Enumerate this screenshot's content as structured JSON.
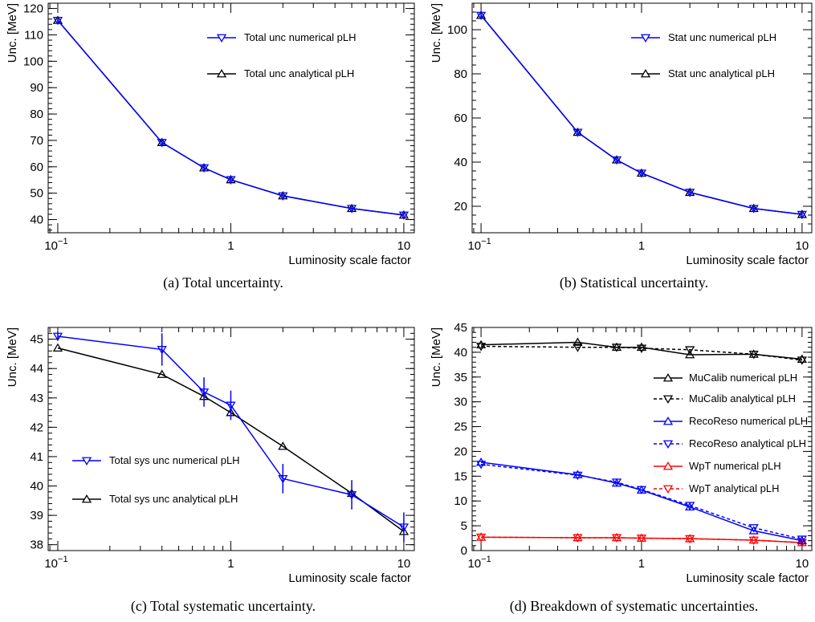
{
  "chart_data": [
    {
      "type": "line",
      "caption": "(a) Total uncertainty.",
      "xlabel": "Luminosity scale factor",
      "ylabel": "Unc. [MeV]",
      "x_scale": "log",
      "xlim": [
        0.088,
        11.5
      ],
      "ylim": [
        35,
        122
      ],
      "yticks": [
        40,
        50,
        60,
        70,
        80,
        90,
        100,
        110,
        120
      ],
      "x": [
        0.1,
        0.4,
        0.7,
        1,
        2,
        5,
        10
      ],
      "series": [
        {
          "name": "Total unc numerical pLH",
          "color": "#0000ff",
          "marker": "triangle-down",
          "values": [
            115.5,
            69.2,
            59.6,
            55.1,
            49.0,
            44.2,
            41.7
          ],
          "errors": [
            0.9,
            0.9,
            0.9,
            0.9,
            0.9,
            0.9,
            0.9
          ]
        },
        {
          "name": "Total unc analytical pLH",
          "color": "#000000",
          "marker": "triangle-up",
          "values": [
            115.5,
            69.2,
            59.6,
            55.1,
            49.0,
            44.2,
            41.7
          ]
        }
      ],
      "legend_position": "top-right",
      "grid": false
    },
    {
      "type": "line",
      "caption": "(b) Statistical uncertainty.",
      "xlabel": "Luminosity scale factor",
      "ylabel": "Unc. [MeV]",
      "x_scale": "log",
      "xlim": [
        0.088,
        11.5
      ],
      "ylim": [
        8,
        112
      ],
      "yticks": [
        20,
        40,
        60,
        80,
        100
      ],
      "x": [
        0.1,
        0.4,
        0.7,
        1,
        2,
        5,
        10
      ],
      "series": [
        {
          "name": "Stat unc numerical pLH",
          "color": "#0000ff",
          "marker": "triangle-down",
          "values": [
            106.5,
            53.5,
            41.0,
            35.0,
            26.3,
            19.0,
            16.3
          ],
          "errors": [
            1.1,
            1.1,
            1.1,
            1.1,
            1.1,
            1.1,
            1.1
          ]
        },
        {
          "name": "Stat unc analytical pLH",
          "color": "#000000",
          "marker": "triangle-up",
          "values": [
            106.5,
            53.5,
            41.0,
            35.0,
            26.3,
            19.0,
            16.3
          ]
        }
      ],
      "legend_position": "top-right",
      "grid": false
    },
    {
      "type": "line",
      "caption": "(c) Total systematic uncertainty.",
      "xlabel": "Luminosity scale factor",
      "ylabel": "Unc. [MeV]",
      "x_scale": "log",
      "xlim": [
        0.088,
        11.5
      ],
      "ylim": [
        37.8,
        45.4
      ],
      "yticks": [
        38,
        39,
        40,
        41,
        42,
        43,
        44,
        45
      ],
      "x": [
        0.1,
        0.4,
        0.7,
        1,
        2,
        5,
        10
      ],
      "series": [
        {
          "name": "Total sys unc numerical pLH",
          "color": "#0000ff",
          "marker": "triangle-down",
          "values": [
            45.1,
            44.65,
            43.2,
            42.75,
            40.25,
            39.7,
            38.6
          ],
          "errors": [
            0.15,
            0.55,
            0.5,
            0.5,
            0.5,
            0.5,
            0.5
          ]
        },
        {
          "name": "Total sys unc analytical pLH",
          "color": "#000000",
          "marker": "triangle-up",
          "values": [
            44.7,
            43.8,
            43.05,
            42.5,
            41.35,
            39.75,
            38.45
          ]
        }
      ],
      "legend_position": "bottom-left",
      "grid": false
    },
    {
      "type": "line",
      "caption": "(d) Breakdown of systematic uncertainties.",
      "xlabel": "Luminosity scale factor",
      "ylabel": "Unc. [MeV]",
      "x_scale": "log",
      "xlim": [
        0.088,
        11.5
      ],
      "ylim": [
        0,
        45
      ],
      "yticks": [
        0,
        5,
        10,
        15,
        20,
        25,
        30,
        35,
        40,
        45
      ],
      "x": [
        0.1,
        0.4,
        0.7,
        1,
        2,
        5,
        10
      ],
      "series": [
        {
          "name": "MuCalib numerical pLH",
          "color": "#000000",
          "marker": "triangle-up",
          "dashed": false,
          "values": [
            41.5,
            42.0,
            41.0,
            41.0,
            39.5,
            39.6,
            38.6
          ]
        },
        {
          "name": "MuCalib analytical pLH",
          "color": "#000000",
          "marker": "triangle-down",
          "dashed": true,
          "values": [
            41.2,
            41.0,
            41.0,
            40.8,
            40.5,
            39.6,
            38.4
          ]
        },
        {
          "name": "RecoReso numerical pLH",
          "color": "#0000ff",
          "marker": "triangle-up",
          "dashed": false,
          "values": [
            17.8,
            15.3,
            13.6,
            12.2,
            8.8,
            4.0,
            2.0
          ]
        },
        {
          "name": "RecoReso analytical pLH",
          "color": "#0000ff",
          "marker": "triangle-down",
          "dashed": true,
          "values": [
            17.4,
            15.2,
            13.8,
            12.3,
            9.1,
            4.6,
            2.3
          ]
        },
        {
          "name": "WpT numerical pLH",
          "color": "#ff0000",
          "marker": "triangle-up",
          "dashed": false,
          "values": [
            2.7,
            2.6,
            2.6,
            2.5,
            2.4,
            2.1,
            1.6
          ]
        },
        {
          "name": "WpT analytical pLH",
          "color": "#ff0000",
          "marker": "triangle-down",
          "dashed": true,
          "values": [
            2.7,
            2.6,
            2.6,
            2.5,
            2.4,
            2.1,
            1.6
          ]
        }
      ],
      "legend_position": "right",
      "grid": false
    }
  ]
}
